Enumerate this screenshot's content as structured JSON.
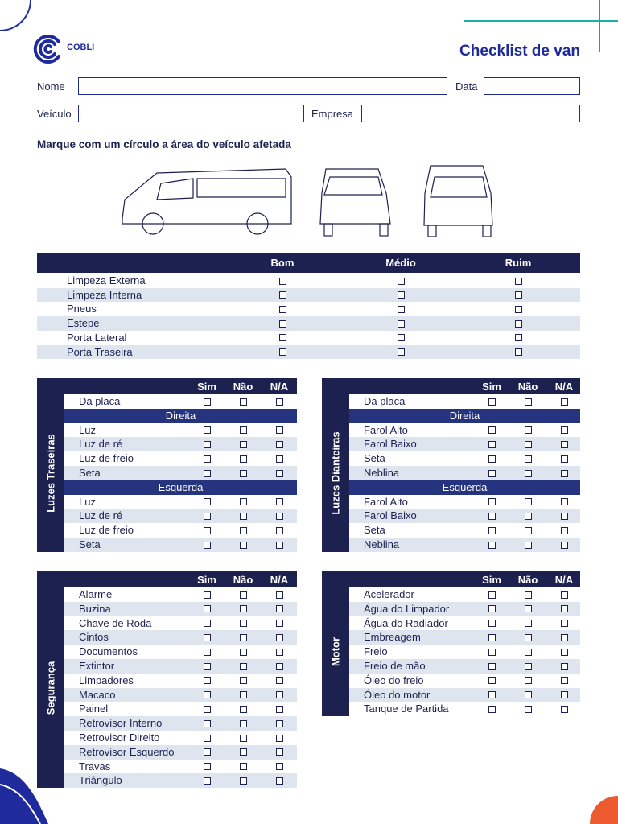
{
  "header": {
    "logo": "COBLI",
    "title": "Checklist de van"
  },
  "form": {
    "fields": [
      "Nome",
      "Data",
      "Veículo",
      "Empresa"
    ]
  },
  "instruction": "Marque com um círculo a área do veículo afetada",
  "conditions": {
    "columns": [
      "Bom",
      "Médio",
      "Ruim"
    ],
    "rows": [
      "Limpeza Externa",
      "Limpeza Interna",
      "Pneus",
      "Estepe",
      "Porta Lateral",
      "Porta Traseira"
    ]
  },
  "panels": [
    {
      "title": "Luzes Traseiras",
      "columns": [
        "Sim",
        "Não",
        "N/A"
      ],
      "groups": [
        {
          "items": [
            "Da placa"
          ]
        },
        {
          "subtitle": "Direita",
          "items": [
            "Luz",
            "Luz de ré",
            "Luz de freio",
            "Seta"
          ]
        },
        {
          "subtitle": "Esquerda",
          "items": [
            "Luz",
            "Luz de ré",
            "Luz de freio",
            "Seta"
          ]
        }
      ]
    },
    {
      "title": "Luzes Dianteiras",
      "columns": [
        "Sim",
        "Não",
        "N/A"
      ],
      "groups": [
        {
          "items": [
            "Da placa"
          ]
        },
        {
          "subtitle": "Direita",
          "items": [
            "Farol Alto",
            "Farol Baixo",
            "Seta",
            "Neblina"
          ]
        },
        {
          "subtitle": "Esquerda",
          "items": [
            "Farol Alto",
            "Farol Baixo",
            "Seta",
            "Neblina"
          ]
        }
      ]
    },
    {
      "title": "Segurança",
      "columns": [
        "Sim",
        "Não",
        "N/A"
      ],
      "groups": [
        {
          "items": [
            "Alarme",
            "Buzina",
            "Chave de Roda",
            "Cintos",
            "Documentos",
            "Extintor",
            "Limpadores",
            "Macaco",
            "Painel",
            "Retrovisor Interno",
            "Retrovisor Direito",
            "Retrovisor Esquerdo",
            "Travas",
            "Triângulo"
          ]
        }
      ]
    },
    {
      "title": "Motor",
      "columns": [
        "Sim",
        "Não",
        "N/A"
      ],
      "groups": [
        {
          "items": [
            "Acelerador",
            "Água do Limpador",
            "Água do Radiador",
            "Embreagem",
            "Freio",
            "Freio de mão",
            "Óleo do freio",
            "Óleo do motor",
            "Tanque de Partida"
          ]
        }
      ]
    }
  ]
}
